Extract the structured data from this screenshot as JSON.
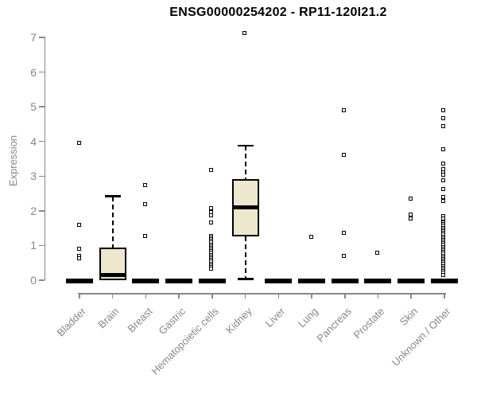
{
  "chart_data": {
    "type": "boxplot",
    "title": "ENSG00000254202 - RP11-120I21.2",
    "ylabel": "Expression",
    "xlabel": "",
    "ylim": [
      0,
      7
    ],
    "yticks": [
      0,
      1,
      2,
      3,
      4,
      5,
      6,
      7
    ],
    "grid": false,
    "legend": "none",
    "categories": [
      "Bladder",
      "Brain",
      "Breast",
      "Gastric",
      "Hematopoietic cells",
      "Kidney",
      "Liver",
      "Lung",
      "Pancreas",
      "Prostate",
      "Skin",
      "Unknown / Other"
    ],
    "boxes": [
      {
        "category": "Bladder",
        "low": 0,
        "q1": 0,
        "median": 0,
        "q3": 0,
        "high": 0,
        "outliers": [
          3.95,
          1.58,
          0.9,
          0.7,
          0.62
        ]
      },
      {
        "category": "Brain",
        "low": 0,
        "q1": 0,
        "median": 0.15,
        "q3": 0.93,
        "high": 2.42,
        "outliers": []
      },
      {
        "category": "Breast",
        "low": 0,
        "q1": 0,
        "median": 0,
        "q3": 0,
        "high": 0,
        "outliers": [
          2.73,
          2.18,
          1.26
        ]
      },
      {
        "category": "Gastric",
        "low": 0,
        "q1": 0,
        "median": 0,
        "q3": 0,
        "high": 0,
        "outliers": []
      },
      {
        "category": "Hematopoietic cells",
        "low": 0,
        "q1": 0,
        "median": 0,
        "q3": 0,
        "high": 0,
        "outliers": [
          3.17,
          2.06,
          1.96,
          1.86,
          1.65,
          1.27,
          1.22,
          1.17,
          1.12,
          1.07,
          1.02,
          0.97,
          0.92,
          0.87,
          0.82,
          0.77,
          0.72,
          0.67,
          0.62,
          0.57,
          0.52,
          0.47,
          0.42,
          0.37,
          0.32
        ]
      },
      {
        "category": "Kidney",
        "low": 0.03,
        "q1": 1.27,
        "median": 2.1,
        "q3": 2.92,
        "high": 3.88,
        "outliers": [
          7.12
        ]
      },
      {
        "category": "Liver",
        "low": 0,
        "q1": 0,
        "median": 0,
        "q3": 0,
        "high": 0,
        "outliers": []
      },
      {
        "category": "Lung",
        "low": 0,
        "q1": 0,
        "median": 0,
        "q3": 0,
        "high": 0,
        "outliers": [
          1.23
        ]
      },
      {
        "category": "Pancreas",
        "low": 0,
        "q1": 0,
        "median": 0,
        "q3": 0,
        "high": 0,
        "outliers": [
          4.9,
          3.6,
          1.36,
          0.68
        ]
      },
      {
        "category": "Prostate",
        "low": 0,
        "q1": 0,
        "median": 0,
        "q3": 0,
        "high": 0,
        "outliers": [
          0.77
        ]
      },
      {
        "category": "Skin",
        "low": 0,
        "q1": 0,
        "median": 0,
        "q3": 0,
        "high": 0,
        "outliers": [
          2.33,
          1.88,
          1.77
        ]
      },
      {
        "category": "Unknown / Other",
        "low": 0,
        "q1": 0,
        "median": 0,
        "q3": 0,
        "high": 0,
        "outliers": [
          4.9,
          4.66,
          4.42,
          3.77,
          3.34,
          3.18,
          3.1,
          3.02,
          2.86,
          2.62,
          2.38,
          2.27,
          1.84,
          1.77,
          1.65,
          1.6,
          1.55,
          1.5,
          1.45,
          1.4,
          1.35,
          1.3,
          1.25,
          1.2,
          1.15,
          1.1,
          1.05,
          1.0,
          0.95,
          0.9,
          0.85,
          0.8,
          0.75,
          0.7,
          0.65,
          0.6,
          0.55,
          0.5,
          0.45,
          0.4,
          0.35,
          0.3,
          0.25,
          0.2,
          0.14
        ]
      }
    ],
    "colors": {
      "box_fill": "#EDE8CD",
      "box_line": "#000000",
      "axis": "#878787",
      "title": "#000000"
    }
  }
}
